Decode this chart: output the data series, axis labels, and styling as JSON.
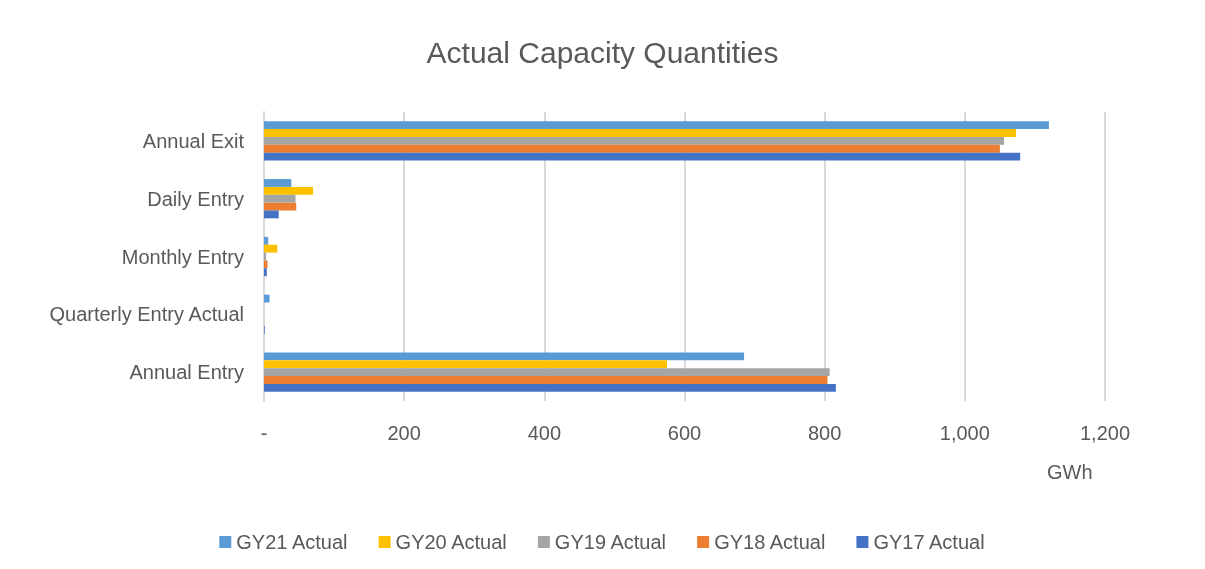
{
  "chart_data": {
    "type": "bar",
    "orientation": "horizontal",
    "title": "Actual Capacity Quantities",
    "xlabel": "GWh",
    "categories": [
      "Annual Exit",
      "Daily Entry",
      "Monthly Entry",
      "Quarterly Entry Actual",
      "Annual Entry"
    ],
    "series": [
      {
        "name": "GY21 Actual",
        "color": "#5b9bd5",
        "values": [
          1120,
          39,
          6,
          8,
          685
        ]
      },
      {
        "name": "GY20 Actual",
        "color": "#ffc000",
        "values": [
          1073,
          70,
          19,
          0,
          575
        ]
      },
      {
        "name": "GY19 Actual",
        "color": "#a5a5a5",
        "values": [
          1056,
          45,
          3,
          0,
          807
        ]
      },
      {
        "name": "GY18 Actual",
        "color": "#ed7d31",
        "values": [
          1050,
          46,
          5,
          0,
          804
        ]
      },
      {
        "name": "GY17 Actual",
        "color": "#4472c4",
        "values": [
          1079,
          21,
          4,
          1,
          816
        ]
      }
    ],
    "xlim": [
      0,
      1200
    ],
    "xticks": [
      {
        "value": 0,
        "label": "-"
      },
      200,
      400,
      600,
      800,
      {
        "value": 1000,
        "label": "1,000"
      },
      {
        "value": 1200,
        "label": "1,200"
      }
    ],
    "grid": "x",
    "legend": "bottom"
  }
}
